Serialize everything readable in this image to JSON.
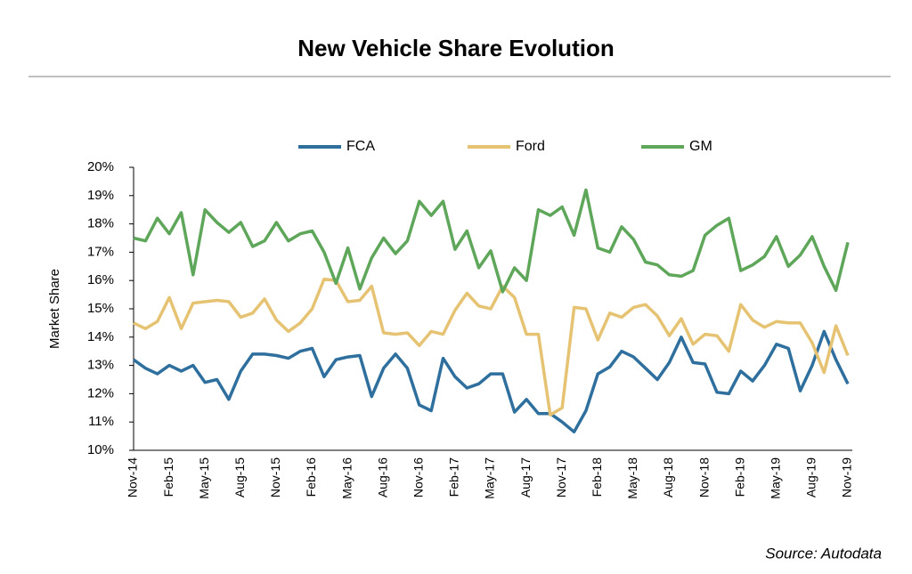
{
  "chart_data": {
    "type": "line",
    "title": "New Vehicle Share Evolution",
    "ylabel": "Market Share",
    "source": "Source: Autodata",
    "categories": [
      "Nov-14",
      null,
      null,
      "Feb-15",
      null,
      null,
      "May-15",
      null,
      null,
      "Aug-15",
      null,
      null,
      "Nov-15",
      null,
      null,
      "Feb-16",
      null,
      null,
      "May-16",
      null,
      null,
      "Aug-16",
      null,
      null,
      "Nov-16",
      null,
      null,
      "Feb-17",
      null,
      null,
      "May-17",
      null,
      null,
      "Aug-17",
      null,
      null,
      "Nov-17",
      null,
      null,
      "Feb-18",
      null,
      null,
      "May-18",
      null,
      null,
      "Aug-18",
      null,
      null,
      "Nov-18",
      null,
      null,
      "Feb-19",
      null,
      null,
      "May-19",
      null,
      null,
      "Aug-19",
      null,
      null,
      "Nov-19"
    ],
    "series": [
      {
        "name": "FCA",
        "color": "#2e6f9e",
        "values": [
          13.2,
          12.9,
          12.7,
          13.0,
          12.8,
          13.0,
          12.4,
          12.5,
          11.8,
          12.8,
          13.4,
          13.4,
          13.35,
          13.25,
          13.5,
          13.6,
          12.6,
          13.2,
          13.3,
          13.35,
          11.9,
          12.9,
          13.4,
          12.9,
          11.6,
          11.4,
          13.25,
          12.6,
          12.2,
          12.35,
          12.7,
          12.7,
          11.35,
          11.8,
          11.3,
          11.3,
          11.0,
          10.65,
          11.4,
          12.7,
          12.95,
          13.5,
          13.3,
          12.9,
          12.5,
          13.1,
          14.0,
          13.1,
          13.05,
          12.05,
          12.0,
          12.8,
          12.45,
          13.0,
          13.75,
          13.6,
          12.1,
          13.0,
          14.2,
          13.2,
          12.35
        ]
      },
      {
        "name": "Ford",
        "color": "#e6c373",
        "values": [
          14.5,
          14.3,
          14.55,
          15.4,
          14.3,
          15.2,
          15.25,
          15.3,
          15.25,
          14.7,
          14.85,
          15.35,
          14.6,
          14.2,
          14.5,
          15.0,
          16.05,
          16.0,
          15.25,
          15.3,
          15.8,
          14.15,
          14.1,
          14.15,
          13.7,
          14.2,
          14.1,
          14.95,
          15.55,
          15.1,
          15.0,
          15.8,
          15.4,
          14.1,
          14.1,
          11.25,
          11.5,
          15.05,
          15.0,
          13.9,
          14.85,
          14.7,
          15.05,
          15.15,
          14.75,
          14.05,
          14.65,
          13.75,
          14.1,
          14.05,
          13.5,
          15.15,
          14.6,
          14.35,
          14.55,
          14.5,
          14.5,
          13.8,
          12.75,
          14.4,
          13.35
        ]
      },
      {
        "name": "GM",
        "color": "#5ea65a",
        "values": [
          17.5,
          17.4,
          18.2,
          17.65,
          18.4,
          16.2,
          18.5,
          18.05,
          17.7,
          18.05,
          17.2,
          17.4,
          18.05,
          17.4,
          17.65,
          17.75,
          17.0,
          15.9,
          17.15,
          15.7,
          16.8,
          17.5,
          16.95,
          17.4,
          18.8,
          18.3,
          18.8,
          17.1,
          17.75,
          16.45,
          17.05,
          15.6,
          16.45,
          16.0,
          18.5,
          18.3,
          18.6,
          17.6,
          19.2,
          17.15,
          17.0,
          17.9,
          17.45,
          16.65,
          16.55,
          16.2,
          16.15,
          16.35,
          17.6,
          17.95,
          18.2,
          16.35,
          16.55,
          16.85,
          17.55,
          16.5,
          16.9,
          17.55,
          16.5,
          15.65,
          17.35
        ]
      }
    ],
    "ylim": [
      10,
      20
    ],
    "yticks": [
      {
        "value": 10,
        "label": "10%"
      },
      {
        "value": 11,
        "label": "11%"
      },
      {
        "value": 12,
        "label": "12%"
      },
      {
        "value": 13,
        "label": "13%"
      },
      {
        "value": 14,
        "label": "14%"
      },
      {
        "value": 15,
        "label": "15%"
      },
      {
        "value": 16,
        "label": "16%"
      },
      {
        "value": 17,
        "label": "17%"
      },
      {
        "value": 18,
        "label": "18%"
      },
      {
        "value": 19,
        "label": "19%"
      },
      {
        "value": 20,
        "label": "20%"
      }
    ],
    "legend": "top"
  }
}
